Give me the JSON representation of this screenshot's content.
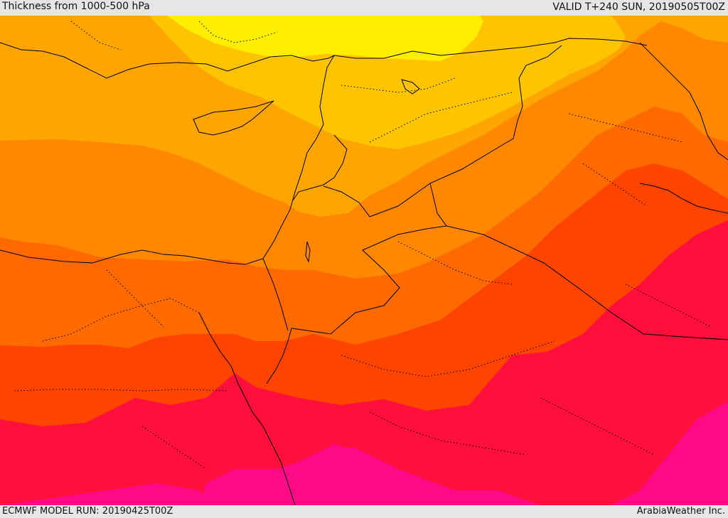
{
  "header": {
    "title": "Thickness from 1000-500 hPa",
    "valid": "VALID T+240 SUN, 20190505T00Z"
  },
  "footer": {
    "model_run": "ECMWF MODEL RUN: 20190425T00Z",
    "credit": "ArabiaWeather Inc."
  },
  "map": {
    "palette": {
      "yellow": "#ffee00",
      "yellow_orange": "#ffc400",
      "orange": "#ffa500",
      "dark_orange": "#ff8800",
      "orange_red": "#ff6a00",
      "red_orange": "#ff4400",
      "red": "#ff0f3a",
      "pink": "#ff0a86",
      "coast_line": "#000000"
    }
  }
}
